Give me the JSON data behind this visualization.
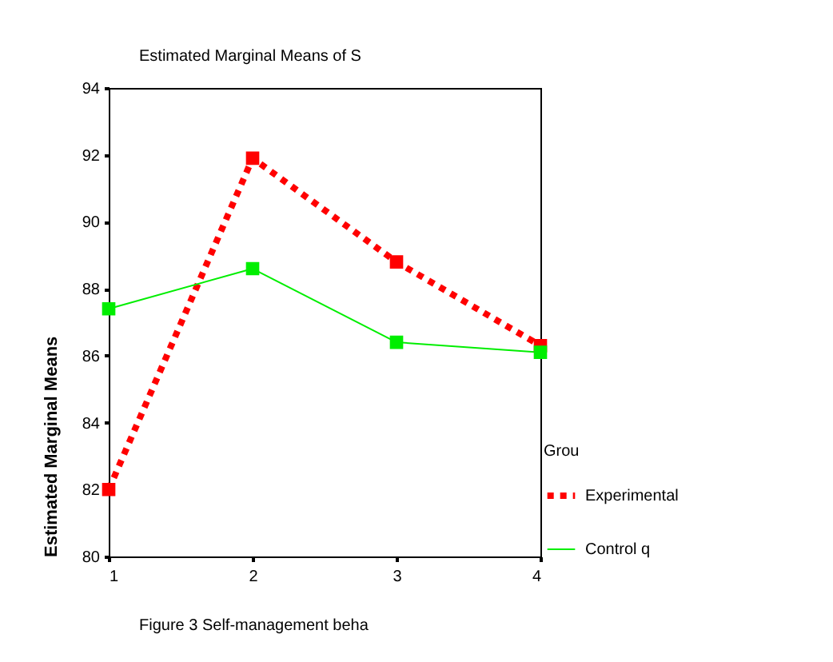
{
  "chart_data": {
    "type": "line",
    "title": "Estimated Marginal Means of S",
    "ylabel": "Estimated Marginal Means",
    "legend_title": "Grou",
    "x": [
      1,
      2,
      3,
      4
    ],
    "series": [
      {
        "name": "Experimental",
        "color": "#ff0000",
        "values": [
          82.0,
          91.9,
          88.8,
          86.3
        ],
        "line_style": "dotted"
      },
      {
        "name": "Control q",
        "color": "#00ee00",
        "values": [
          87.4,
          88.6,
          86.4,
          86.1
        ],
        "line_style": "solid"
      }
    ],
    "xlim": [
      1,
      4
    ],
    "xticks": [
      1,
      2,
      3,
      4
    ],
    "ylim": [
      80,
      94
    ],
    "yticks": [
      80,
      82,
      84,
      86,
      88,
      90,
      92,
      94
    ],
    "grid": false,
    "legend": "right",
    "marker": "square",
    "annotations": [
      "Figure 3 Self-management beha"
    ]
  }
}
